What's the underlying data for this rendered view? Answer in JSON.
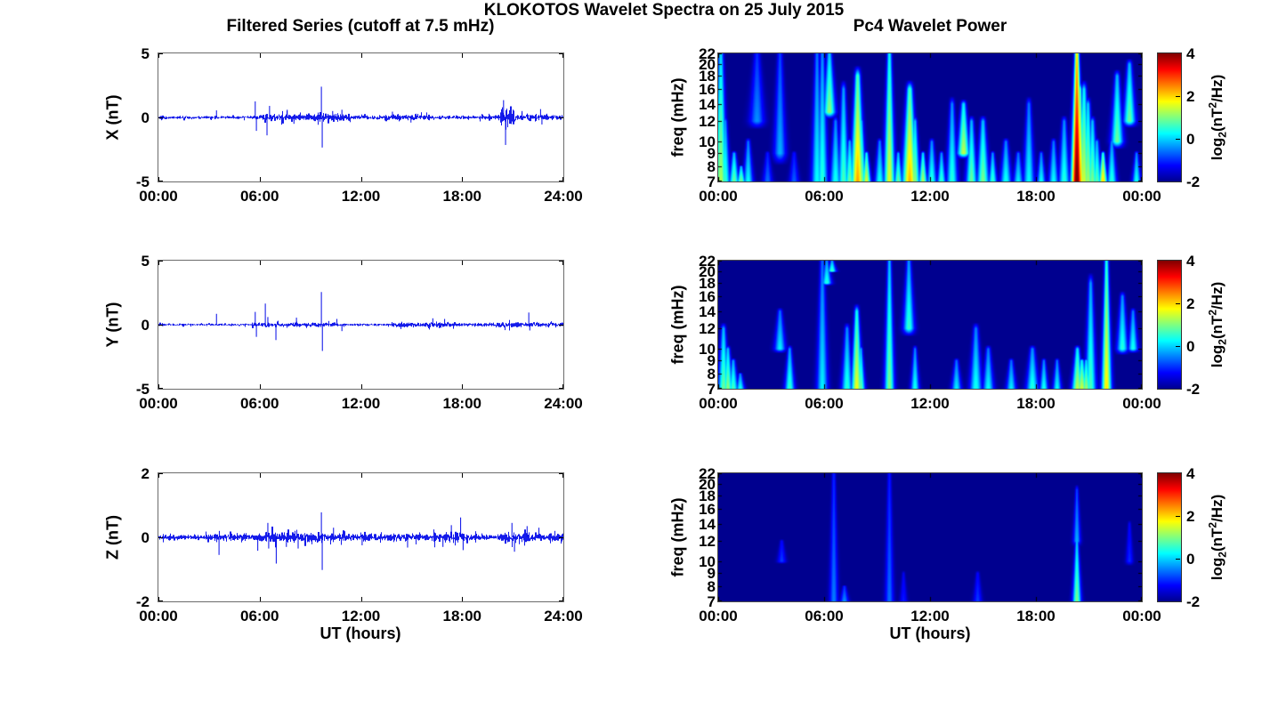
{
  "figure": {
    "title": "KLOKOTOS Wavelet Spectra on 25 July 2015",
    "left_column_title": "Filtered Series (cutoff at 7.5 mHz)",
    "right_column_title": "Pc4 Wavelet Power",
    "x_axis_label": "UT (hours)",
    "colorbar_label": {
      "prefix": "log",
      "sub": "2",
      "mid": "(nT",
      "sup": "2",
      "suffix": "/Hz)"
    },
    "colors": {
      "line": "#0008E8",
      "heatmap_background": "#00008F",
      "axis": "#6b6b6b",
      "text": "#000000",
      "colorbar_stops": [
        "#00008F",
        "#0000FF",
        "#00FFFF",
        "#FFFF00",
        "#FF0000",
        "#800000"
      ],
      "colorbar_stop_percents": [
        0,
        12.5,
        37.5,
        62.5,
        87.5,
        100
      ]
    }
  },
  "chart_data": [
    {
      "id": "x-filtered-series",
      "type": "line",
      "row": 0,
      "column": "left",
      "ylabel": "X (nT)",
      "ylim": [
        -5,
        5
      ],
      "yticks": [
        "5",
        "0",
        "-5"
      ],
      "xlim_hours": [
        0,
        24
      ],
      "xticks": [
        "00:00",
        "06:00",
        "12:00",
        "18:00",
        "24:00"
      ],
      "noise_base_nT": 0.085,
      "region_format": [
        "t_start_hours",
        "t_end_hours",
        "noise_amplitude_nT"
      ],
      "noise_regions": [
        [
          0,
          0.3,
          0.18
        ],
        [
          5.4,
          6.0,
          0.16
        ],
        [
          6.1,
          8.6,
          0.22
        ],
        [
          8.6,
          11.3,
          0.26
        ],
        [
          11.3,
          13,
          0.14
        ],
        [
          13,
          16.2,
          0.17
        ],
        [
          16.2,
          20.2,
          0.12
        ],
        [
          20.25,
          21.15,
          0.5
        ],
        [
          21.15,
          23.2,
          0.2
        ],
        [
          23.2,
          24,
          0.14
        ]
      ],
      "spike_format": [
        "t_hours",
        "amplitude_nT"
      ],
      "spikes": [
        [
          3.45,
          0.55
        ],
        [
          5.75,
          1.25
        ],
        [
          5.82,
          -1.05
        ],
        [
          6.45,
          -1.4
        ],
        [
          6.6,
          0.9
        ],
        [
          7.65,
          0.6
        ],
        [
          8.05,
          -0.5
        ],
        [
          9.68,
          2.4
        ],
        [
          9.73,
          -2.35
        ],
        [
          10.35,
          0.5
        ],
        [
          10.9,
          0.6
        ],
        [
          13.9,
          0.45
        ],
        [
          15.0,
          -0.4
        ],
        [
          20.5,
          1.35
        ],
        [
          20.62,
          -2.15
        ],
        [
          21.6,
          0.5
        ],
        [
          22.7,
          0.65
        ],
        [
          22.78,
          -0.55
        ]
      ]
    },
    {
      "id": "y-filtered-series",
      "type": "line",
      "row": 1,
      "column": "left",
      "ylabel": "Y (nT)",
      "ylim": [
        -5,
        5
      ],
      "yticks": [
        "5",
        "0",
        "-5"
      ],
      "xlim_hours": [
        0,
        24
      ],
      "xticks": [
        "00:00",
        "06:00",
        "12:00",
        "18:00",
        "24:00"
      ],
      "noise_base_nT": 0.07,
      "region_format": [
        "t_start_hours",
        "t_end_hours",
        "noise_amplitude_nT"
      ],
      "noise_regions": [
        [
          0,
          0.3,
          0.12
        ],
        [
          5.4,
          8.6,
          0.13
        ],
        [
          8.6,
          11,
          0.12
        ],
        [
          13.8,
          17.6,
          0.16
        ],
        [
          17.6,
          20,
          0.1
        ],
        [
          20,
          21.6,
          0.17
        ],
        [
          21.6,
          24,
          0.12
        ]
      ],
      "spike_format": [
        "t_hours",
        "amplitude_nT"
      ],
      "spikes": [
        [
          3.45,
          0.85
        ],
        [
          5.75,
          1.0
        ],
        [
          5.82,
          -0.95
        ],
        [
          6.35,
          1.65
        ],
        [
          6.5,
          0.6
        ],
        [
          6.98,
          -1.2
        ],
        [
          8.2,
          0.55
        ],
        [
          9.68,
          2.55
        ],
        [
          9.74,
          -2.05
        ],
        [
          10.6,
          0.45
        ],
        [
          10.9,
          -0.5
        ],
        [
          16.3,
          0.5
        ],
        [
          17.0,
          0.45
        ],
        [
          22.0,
          0.95
        ],
        [
          22.06,
          -0.45
        ]
      ]
    },
    {
      "id": "z-filtered-series",
      "type": "line",
      "row": 2,
      "column": "left",
      "ylabel": "Z (nT)",
      "ylim": [
        -2,
        2
      ],
      "yticks": [
        "2",
        "0",
        "-2"
      ],
      "xlim_hours": [
        0,
        24
      ],
      "xticks": [
        "00:00",
        "06:00",
        "12:00",
        "18:00",
        "24:00"
      ],
      "noise_base_nT": 0.075,
      "region_format": [
        "t_start_hours",
        "t_end_hours",
        "noise_amplitude_nT"
      ],
      "noise_regions": [
        [
          0,
          1,
          0.09
        ],
        [
          4.2,
          5.2,
          0.11
        ],
        [
          5.5,
          6.2,
          0.1
        ],
        [
          6.3,
          9.6,
          0.13
        ],
        [
          9.6,
          11.2,
          0.11
        ],
        [
          13.5,
          16,
          0.09
        ],
        [
          16.3,
          18.6,
          0.12
        ],
        [
          20.4,
          22.3,
          0.12
        ],
        [
          22.3,
          24,
          0.09
        ]
      ],
      "spike_format": [
        "t_hours",
        "amplitude_nT"
      ],
      "spikes": [
        [
          3.6,
          -0.55
        ],
        [
          3.62,
          0.2
        ],
        [
          5.9,
          -0.42
        ],
        [
          6.5,
          0.45
        ],
        [
          6.55,
          -0.35
        ],
        [
          7.0,
          -0.82
        ],
        [
          7.6,
          -0.3
        ],
        [
          8.3,
          -0.35
        ],
        [
          9.68,
          0.78
        ],
        [
          9.73,
          -1.02
        ],
        [
          10.4,
          0.3
        ],
        [
          12.1,
          -0.25
        ],
        [
          14.8,
          -0.32
        ],
        [
          16.9,
          -0.3
        ],
        [
          17.4,
          0.38
        ],
        [
          17.95,
          0.62
        ],
        [
          18.1,
          -0.4
        ],
        [
          21.0,
          0.45
        ],
        [
          21.15,
          -0.45
        ],
        [
          21.9,
          0.35
        ],
        [
          22.6,
          0.3
        ]
      ]
    },
    {
      "id": "x-wavelet-power",
      "type": "heatmap",
      "row": 0,
      "column": "right",
      "ylabel": "freq (mHz)",
      "freq_lim_mHz": [
        7,
        22
      ],
      "freq_scale": "log",
      "yticks": [
        "22",
        "20",
        "18",
        "16",
        "14",
        "12",
        "10",
        "9",
        "8",
        "7"
      ],
      "xlim_hours": [
        0,
        24
      ],
      "xticks": [
        "00:00",
        "06:00",
        "12:00",
        "18:00",
        "00:00"
      ],
      "clim": [
        -2,
        4
      ],
      "colorbar_ticks": [
        "4",
        "2",
        "0",
        "-2"
      ],
      "colormap": "jet",
      "event_format": [
        "t_hours",
        "f_low_mHz",
        "f_high_mHz",
        "peak_log2_power",
        "half_width_hours"
      ],
      "events": [
        [
          0.15,
          7,
          22,
          1.3,
          0.1
        ],
        [
          0.4,
          7,
          12,
          0.6,
          0.08
        ],
        [
          0.9,
          7,
          9,
          0.9,
          0.08
        ],
        [
          1.3,
          7,
          8,
          1.0,
          0.07
        ],
        [
          1.7,
          7,
          10,
          0.3,
          0.08
        ],
        [
          2.2,
          12,
          22,
          -0.4,
          0.12
        ],
        [
          2.8,
          7,
          9,
          -0.6,
          0.08
        ],
        [
          3.5,
          9,
          22,
          -0.2,
          0.1
        ],
        [
          4.3,
          7,
          9,
          -0.7,
          0.08
        ],
        [
          5.6,
          7,
          22,
          0.3,
          0.09
        ],
        [
          5.9,
          7,
          22,
          0.5,
          0.09
        ],
        [
          6.3,
          13,
          22,
          1.1,
          0.1
        ],
        [
          6.65,
          7,
          12,
          0.4,
          0.09
        ],
        [
          7.1,
          7,
          16,
          0.7,
          0.09
        ],
        [
          7.45,
          7,
          10,
          0.9,
          0.08
        ],
        [
          7.9,
          7,
          18,
          2.3,
          0.11
        ],
        [
          8.1,
          7,
          12,
          1.2,
          0.08
        ],
        [
          8.4,
          7,
          9,
          1.6,
          0.07
        ],
        [
          9.15,
          7,
          10,
          0.4,
          0.08
        ],
        [
          9.7,
          7,
          22,
          1.6,
          0.09
        ],
        [
          10.2,
          7,
          9,
          0.9,
          0.07
        ],
        [
          10.85,
          7,
          16,
          2.2,
          0.12
        ],
        [
          11.15,
          7,
          12,
          1.1,
          0.08
        ],
        [
          11.6,
          7,
          9,
          1.3,
          0.07
        ],
        [
          12.1,
          7,
          10,
          0.5,
          0.08
        ],
        [
          12.65,
          7,
          9,
          0.6,
          0.07
        ],
        [
          13.25,
          7,
          14,
          0.5,
          0.09
        ],
        [
          13.9,
          9,
          14,
          1.4,
          0.1
        ],
        [
          14.35,
          7,
          12,
          0.9,
          0.09
        ],
        [
          15.0,
          7,
          12,
          1.0,
          0.1
        ],
        [
          15.55,
          7,
          9,
          0.6,
          0.07
        ],
        [
          16.3,
          7,
          10,
          0.4,
          0.09
        ],
        [
          17.0,
          7,
          9,
          0.2,
          0.08
        ],
        [
          17.6,
          7,
          14,
          0.3,
          0.09
        ],
        [
          18.3,
          7,
          9,
          0.3,
          0.07
        ],
        [
          19.0,
          7,
          10,
          0.3,
          0.08
        ],
        [
          19.6,
          7,
          12,
          0.5,
          0.09
        ],
        [
          20.32,
          7,
          22,
          4.3,
          0.09
        ],
        [
          20.5,
          7,
          16,
          2.4,
          0.07
        ],
        [
          20.72,
          7,
          16,
          1.5,
          0.1
        ],
        [
          20.95,
          7,
          14,
          1.2,
          0.09
        ],
        [
          21.2,
          7,
          12,
          1.0,
          0.09
        ],
        [
          21.45,
          7,
          10,
          0.8,
          0.08
        ],
        [
          21.8,
          7,
          9,
          2.0,
          0.07
        ],
        [
          22.3,
          7,
          10,
          0.5,
          0.08
        ],
        [
          22.6,
          10,
          18,
          0.9,
          0.1
        ],
        [
          23.3,
          12,
          20,
          0.9,
          0.1
        ],
        [
          23.7,
          7,
          9,
          0.4,
          0.07
        ]
      ]
    },
    {
      "id": "y-wavelet-power",
      "type": "heatmap",
      "row": 1,
      "column": "right",
      "ylabel": "freq (mHz)",
      "freq_lim_mHz": [
        7,
        22
      ],
      "freq_scale": "log",
      "yticks": [
        "22",
        "20",
        "18",
        "16",
        "14",
        "12",
        "10",
        "9",
        "8",
        "7"
      ],
      "xlim_hours": [
        0,
        24
      ],
      "xticks": [
        "00:00",
        "06:00",
        "12:00",
        "18:00",
        "00:00"
      ],
      "clim": [
        -2,
        4
      ],
      "colorbar_ticks": [
        "4",
        "2",
        "0",
        "-2"
      ],
      "colormap": "jet",
      "event_format": [
        "t_hours",
        "f_low_mHz",
        "f_high_mHz",
        "peak_log2_power",
        "half_width_hours"
      ],
      "events": [
        [
          0.3,
          7,
          12,
          0.9,
          0.09
        ],
        [
          0.55,
          7,
          10,
          1.1,
          0.08
        ],
        [
          0.85,
          7,
          9,
          0.7,
          0.08
        ],
        [
          1.25,
          7,
          8,
          0.4,
          0.07
        ],
        [
          3.5,
          10,
          14,
          0.2,
          0.09
        ],
        [
          4.05,
          7,
          10,
          0.6,
          0.08
        ],
        [
          5.9,
          7,
          22,
          0.2,
          0.09
        ],
        [
          6.15,
          18,
          22,
          0.5,
          0.08
        ],
        [
          6.45,
          20,
          22,
          0.7,
          0.07
        ],
        [
          7.3,
          7,
          12,
          0.5,
          0.09
        ],
        [
          7.85,
          7,
          14,
          1.7,
          0.09
        ],
        [
          8.08,
          7,
          10,
          0.9,
          0.07
        ],
        [
          9.7,
          7,
          22,
          1.0,
          0.08
        ],
        [
          10.8,
          12,
          22,
          0.6,
          0.09
        ],
        [
          11.15,
          7,
          10,
          0.4,
          0.07
        ],
        [
          13.5,
          7,
          9,
          0.2,
          0.08
        ],
        [
          14.6,
          7,
          12,
          0.4,
          0.1
        ],
        [
          15.3,
          7,
          10,
          0.3,
          0.09
        ],
        [
          16.6,
          7,
          9,
          0.2,
          0.08
        ],
        [
          17.8,
          7,
          10,
          0.5,
          0.1
        ],
        [
          18.45,
          7,
          9,
          0.4,
          0.07
        ],
        [
          19.2,
          7,
          9,
          0.3,
          0.07
        ],
        [
          20.35,
          7,
          10,
          1.4,
          0.09
        ],
        [
          20.6,
          7,
          9,
          1.5,
          0.09
        ],
        [
          20.85,
          7,
          9,
          1.2,
          0.08
        ],
        [
          21.1,
          7,
          18,
          0.7,
          0.09
        ],
        [
          22.0,
          7,
          22,
          1.9,
          0.08
        ],
        [
          22.9,
          10,
          16,
          0.5,
          0.09
        ],
        [
          23.5,
          10,
          14,
          0.4,
          0.08
        ]
      ]
    },
    {
      "id": "z-wavelet-power",
      "type": "heatmap",
      "row": 2,
      "column": "right",
      "ylabel": "freq (mHz)",
      "freq_lim_mHz": [
        7,
        22
      ],
      "freq_scale": "log",
      "yticks": [
        "22",
        "20",
        "18",
        "16",
        "14",
        "12",
        "10",
        "9",
        "8",
        "7"
      ],
      "xlim_hours": [
        0,
        24
      ],
      "xticks": [
        "00:00",
        "06:00",
        "12:00",
        "18:00",
        "00:00"
      ],
      "clim": [
        -2,
        4
      ],
      "colorbar_ticks": [
        "4",
        "2",
        "0",
        "-2"
      ],
      "colormap": "jet",
      "event_format": [
        "t_hours",
        "f_low_mHz",
        "f_high_mHz",
        "peak_log2_power",
        "half_width_hours"
      ],
      "events": [
        [
          3.6,
          10,
          12,
          -0.9,
          0.07
        ],
        [
          6.55,
          7,
          22,
          -0.5,
          0.07
        ],
        [
          7.15,
          7,
          8,
          -0.4,
          0.07
        ],
        [
          9.7,
          7,
          22,
          -0.6,
          0.07
        ],
        [
          10.5,
          7,
          9,
          -1.1,
          0.06
        ],
        [
          14.7,
          7,
          9,
          -0.9,
          0.07
        ],
        [
          20.32,
          7,
          12,
          1.0,
          0.07
        ],
        [
          20.32,
          12,
          19,
          -0.2,
          0.06
        ],
        [
          23.3,
          10,
          14,
          -1.0,
          0.06
        ]
      ]
    }
  ]
}
